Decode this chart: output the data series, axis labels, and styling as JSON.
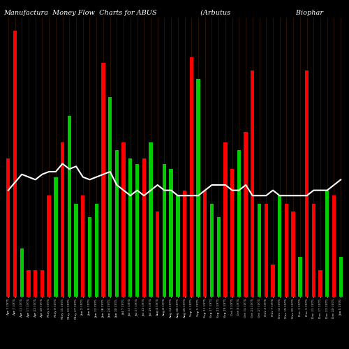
{
  "title": "Manufactura  Money Flow  Charts for ABUS                    (Arbutus                              Biophar",
  "title_fontsize": 7,
  "background_color": "#000000",
  "line_color": "#ffffff",
  "line_width": 1.5,
  "categories": [
    "Apr 1 1975",
    "Apr 7 1975",
    "Apr 11 1975",
    "Apr 17 1975",
    "Apr 23 1975",
    "Apr 29 1975",
    "May 5 1975",
    "May 9 1975",
    "May 15 1975",
    "May 21 1975",
    "May 27 1975",
    "Jun 2 1975",
    "Jun 6 1975",
    "Jun 12 1975",
    "Jun 18 1975",
    "Jun 24 1975",
    "Jun 30 1975",
    "Jul 7 1975",
    "Jul 11 1975",
    "Jul 17 1975",
    "Jul 23 1975",
    "Jul 29 1975",
    "Aug 4 1975",
    "Aug 8 1975",
    "Aug 14 1975",
    "Aug 20 1975",
    "Aug 26 1975",
    "Sep 1 1975",
    "Sep 5 1975",
    "Sep 11 1975",
    "Sep 17 1975",
    "Sep 23 1975",
    "Sep 29 1975",
    "Oct 3 1975",
    "Oct 9 1975",
    "Oct 15 1975",
    "Oct 21 1975",
    "Oct 27 1975",
    "Nov 3 1975",
    "Nov 7 1975",
    "Nov 13 1975",
    "Nov 19 1975",
    "Nov 25 1975",
    "Dec 1 1975",
    "Dec 5 1975",
    "Dec 11 1975",
    "Dec 17 1975",
    "Dec 23 1975",
    "Dec 29 1975",
    "Jan 5 1976"
  ],
  "bar_heights": [
    0.52,
    1.0,
    0.18,
    0.1,
    0.1,
    0.1,
    0.38,
    0.45,
    0.58,
    0.68,
    0.35,
    0.38,
    0.3,
    0.35,
    0.88,
    0.75,
    0.55,
    0.58,
    0.52,
    0.5,
    0.52,
    0.58,
    0.32,
    0.5,
    0.48,
    0.38,
    0.4,
    0.9,
    0.82,
    0.4,
    0.35,
    0.3,
    0.58,
    0.48,
    0.55,
    0.62,
    0.85,
    0.35,
    0.35,
    0.12,
    0.38,
    0.35,
    0.32,
    0.15,
    0.85,
    0.35,
    0.1,
    0.4,
    0.38,
    0.15
  ],
  "bar_colors": [
    "red",
    "red",
    "green",
    "red",
    "red",
    "red",
    "red",
    "green",
    "red",
    "green",
    "green",
    "red",
    "green",
    "green",
    "red",
    "green",
    "green",
    "red",
    "green",
    "green",
    "red",
    "green",
    "red",
    "green",
    "green",
    "green",
    "red",
    "red",
    "green",
    "red",
    "green",
    "green",
    "red",
    "red",
    "green",
    "red",
    "red",
    "green",
    "red",
    "red",
    "green",
    "red",
    "red",
    "green",
    "red",
    "red",
    "red",
    "green",
    "red",
    "green"
  ],
  "line_values": [
    0.4,
    0.43,
    0.46,
    0.45,
    0.44,
    0.46,
    0.47,
    0.47,
    0.5,
    0.48,
    0.49,
    0.45,
    0.44,
    0.45,
    0.46,
    0.47,
    0.42,
    0.4,
    0.38,
    0.4,
    0.38,
    0.4,
    0.42,
    0.4,
    0.4,
    0.38,
    0.38,
    0.38,
    0.38,
    0.4,
    0.42,
    0.42,
    0.42,
    0.4,
    0.4,
    0.42,
    0.38,
    0.38,
    0.38,
    0.4,
    0.38,
    0.38,
    0.38,
    0.38,
    0.38,
    0.4,
    0.4,
    0.4,
    0.42,
    0.44
  ],
  "dark_bar_colors": [
    "#8B0000",
    "#006400"
  ],
  "ylim": [
    0,
    1.05
  ]
}
